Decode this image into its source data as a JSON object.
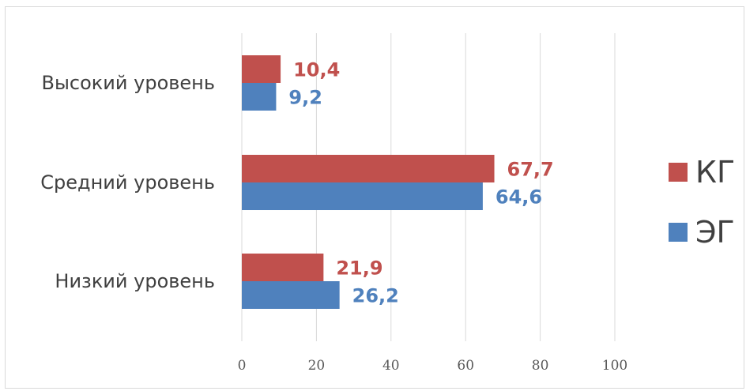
{
  "chart_data": {
    "type": "bar",
    "orientation": "horizontal",
    "categories": [
      "Высокий уровень",
      "Средний уровень",
      "Низкий уровень"
    ],
    "series": [
      {
        "name": "КГ",
        "color": "#c0504d",
        "values": [
          10.4,
          67.7,
          21.9
        ],
        "labels": [
          "10,4",
          "67,7",
          "21,9"
        ]
      },
      {
        "name": "ЭГ",
        "color": "#4f81bd",
        "values": [
          9.2,
          64.6,
          26.2
        ],
        "labels": [
          "9,2",
          "64,6",
          "26,2"
        ]
      }
    ],
    "xlim": [
      0,
      100
    ],
    "xticks": [
      0,
      20,
      40,
      60,
      80,
      100
    ],
    "xtick_labels": [
      "0",
      "20",
      "40",
      "60",
      "80",
      "100"
    ],
    "grid": true,
    "legend_position": "right",
    "title": "",
    "xlabel": "",
    "ylabel": ""
  }
}
